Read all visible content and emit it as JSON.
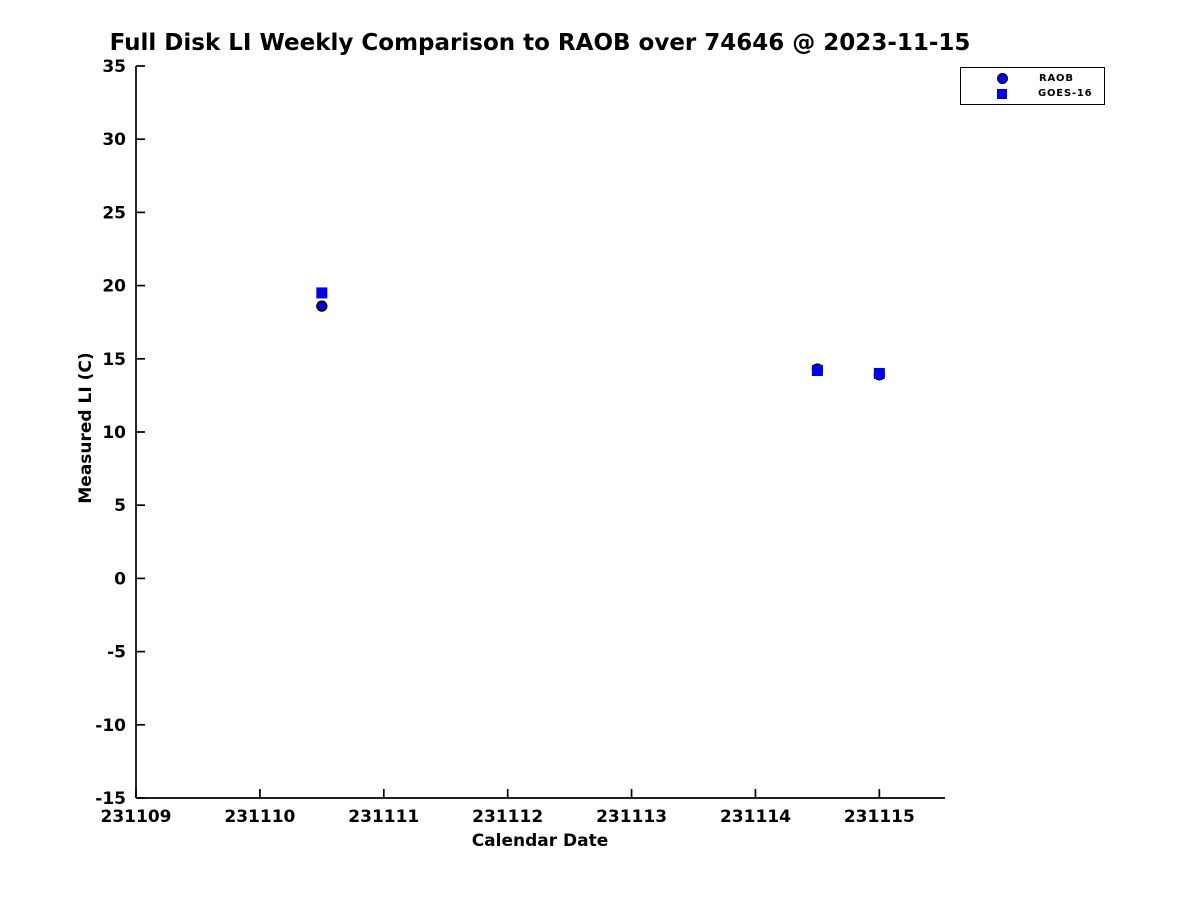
{
  "chart_data": {
    "type": "scatter",
    "title": "Full Disk LI Weekly Comparison to RAOB over 74646 @ 2023-11-15",
    "xlabel": "Calendar Date",
    "ylabel": "Measured LI (C)",
    "xlim": [
      231109,
      231115.53
    ],
    "ylim": [
      -15,
      35
    ],
    "xticks": [
      231109,
      231110,
      231111,
      231112,
      231113,
      231114,
      231115
    ],
    "yticks": [
      35,
      30,
      25,
      20,
      15,
      10,
      5,
      0,
      -5,
      -10,
      -15
    ],
    "grid": false,
    "legend_position": "upper right",
    "axis_color": "#000000",
    "series": [
      {
        "name": "RAOB",
        "marker": "circle",
        "color": "#0000ee",
        "edge_color": "#000000",
        "x": [
          231110.5,
          231114.5,
          231115.0
        ],
        "y": [
          18.6,
          14.3,
          13.9
        ]
      },
      {
        "name": "GOES-16",
        "marker": "square",
        "color": "#0000ee",
        "edge_color": "#0000ee",
        "x": [
          231110.5,
          231114.5,
          231115.0
        ],
        "y": [
          19.5,
          14.2,
          14.0
        ]
      }
    ]
  }
}
